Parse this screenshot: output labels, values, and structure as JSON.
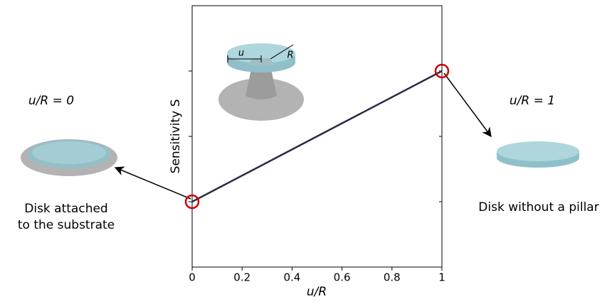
{
  "chart_data": {
    "type": "line",
    "xlabel": "u/R",
    "ylabel": "Sensitivity S",
    "x": [
      0,
      1
    ],
    "series": [
      {
        "values": [
          1,
          3
        ],
        "color": "#2b2b44",
        "marker_color": "#cc0000"
      }
    ],
    "xlim": [
      0,
      1
    ],
    "xticks": [
      0,
      0.2,
      0.4,
      0.6,
      0.8,
      1
    ],
    "ylim": [
      0,
      4
    ],
    "yticks": [
      1,
      2,
      3
    ],
    "annotations": {
      "left_ratio": "u/R = 0",
      "right_ratio": "u/R = 1",
      "left_caption": [
        "Disk attached",
        "to the substrate"
      ],
      "right_caption": "Disk without a pillar",
      "inset_u": "u",
      "inset_R": "R"
    }
  }
}
